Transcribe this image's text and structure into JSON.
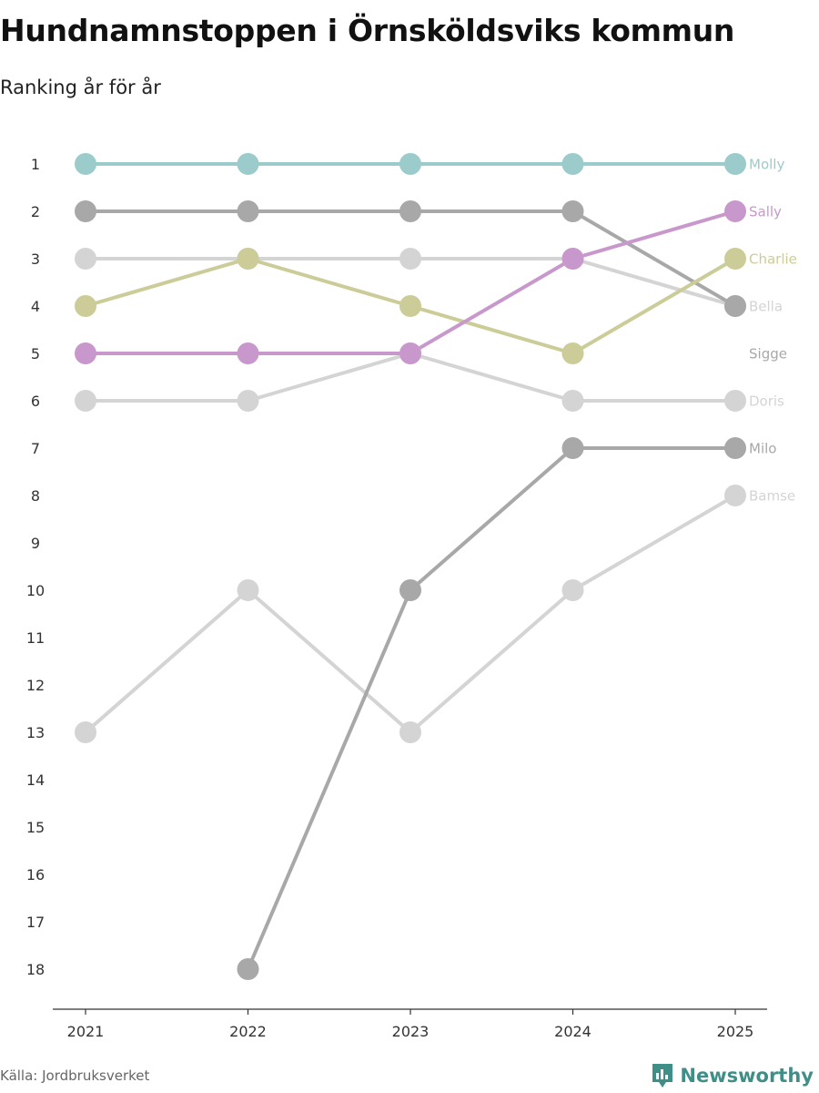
{
  "header": {
    "title": "Hundnamnstoppen i Örnsköldsviks kommun",
    "subtitle": "Ranking år för år"
  },
  "footer": {
    "source": "Källa: Jordbruksverket",
    "brand": "Newsworthy",
    "brand_icon": "newsworthy-logo-icon"
  },
  "colors": {
    "molly": "#9ccbcb",
    "sally": "#c898cc",
    "charlie": "#cccc99",
    "dark_gray": "#a8a8a8",
    "light_gray": "#d4d4d4",
    "axis": "#333333",
    "brand": "#3f8f88"
  },
  "chart_data": {
    "type": "line",
    "title": "Hundnamnstoppen i Örnsköldsviks kommun",
    "subtitle": "Ranking år för år",
    "x": [
      "2021",
      "2022",
      "2023",
      "2024",
      "2025"
    ],
    "ylim": [
      1,
      18
    ],
    "y_reversed": true,
    "y_ticks": [
      1,
      2,
      3,
      4,
      5,
      6,
      7,
      8,
      9,
      10,
      11,
      12,
      13,
      14,
      15,
      16,
      17,
      18
    ],
    "grid": false,
    "legend": "end-labels",
    "series": [
      {
        "name": "Bamse",
        "color": "#d4d4d4",
        "values": [
          13,
          10,
          13,
          10,
          8
        ]
      },
      {
        "name": "Doris",
        "color": "#d4d4d4",
        "values": [
          6,
          6,
          5,
          6,
          6
        ]
      },
      {
        "name": "Bella",
        "color": "#d4d4d4",
        "values": [
          3,
          3,
          3,
          3,
          4
        ]
      },
      {
        "name": "Milo",
        "color": "#a8a8a8",
        "values": [
          null,
          18,
          10,
          7,
          7
        ]
      },
      {
        "name": "Sigge",
        "color": "#a8a8a8",
        "values": [
          2,
          2,
          2,
          2,
          4
        ]
      },
      {
        "name": "Charlie",
        "color": "#cccc99",
        "values": [
          4,
          3,
          4,
          5,
          3
        ]
      },
      {
        "name": "Sally",
        "color": "#c898cc",
        "values": [
          5,
          5,
          5,
          3,
          2
        ]
      },
      {
        "name": "Molly",
        "color": "#9ccbcb",
        "values": [
          1,
          1,
          1,
          1,
          1
        ]
      }
    ],
    "end_labels": [
      {
        "name": "Molly",
        "rank": 1,
        "color": "#9ccbcb"
      },
      {
        "name": "Sally",
        "rank": 2,
        "color": "#c898cc"
      },
      {
        "name": "Charlie",
        "rank": 3,
        "color": "#cccc99"
      },
      {
        "name": "Bella",
        "rank": 4,
        "color": "#d4d4d4"
      },
      {
        "name": "Sigge",
        "rank": 5,
        "color": "#a8a8a8"
      },
      {
        "name": "Doris",
        "rank": 6,
        "color": "#d4d4d4"
      },
      {
        "name": "Milo",
        "rank": 7,
        "color": "#a8a8a8"
      },
      {
        "name": "Bamse",
        "rank": 8,
        "color": "#d4d4d4"
      }
    ]
  }
}
